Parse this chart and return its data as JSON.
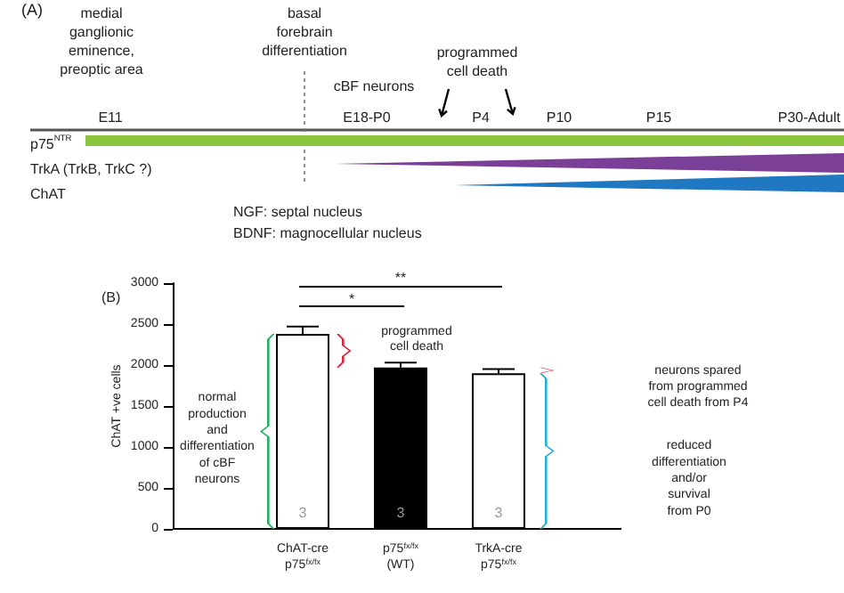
{
  "chart_data": {
    "type": "bar",
    "categories": [
      "ChAT-cre\np75$^{fx/fx}$",
      "p75$^{fx/fx}$\n(WT)",
      "TrkA-cre\np75$^{fx/fx}$"
    ],
    "values": [
      2380,
      1970,
      1900
    ],
    "errors": [
      [
        2380,
        2470
      ],
      [
        1970,
        2030
      ],
      [
        1900,
        1950
      ]
    ],
    "colors": [
      "#ffffff",
      "#000000",
      "#ffffff"
    ],
    "ylabel": "ChAT +ve cells",
    "ylim": [
      0,
      3000
    ],
    "yticks": [
      0,
      500,
      1000,
      1500,
      2000,
      2500,
      3000
    ],
    "grid": false,
    "annotations": [
      "(A)",
      "medial\nganglionic\neminence,\npreoptic area",
      "basal\nforebrain\ndifferentiation",
      "programmed\ncell death",
      "cBF neurons",
      "E11",
      "E18-P0",
      "P4",
      "P10",
      "P15",
      "P30-Adult",
      "p75$^{NTR}$",
      "TrkA (TrkB, TrkC ?)",
      "ChAT",
      "NGF: septal nucleus",
      "BDNF: magnocellular nucleus",
      "(B)",
      "**",
      "*",
      "programmed\ncell death",
      "normal\nproduction\nand\ndifferentiation\nof cBF\nneurons",
      "neurons spared\nfrom programmed\ncell death from P4",
      "reduced\ndifferentiation\nand/or\nsurvival\nfrom P0",
      "3",
      "3",
      "3"
    ]
  }
}
